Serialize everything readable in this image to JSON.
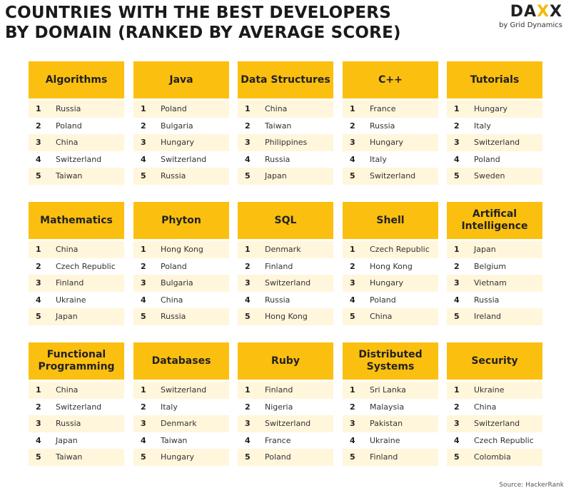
{
  "title_line1": "COUNTRIES WITH THE BEST DEVELOPERS",
  "title_line2": "BY DOMAIN (RANKED BY AVERAGE SCORE)",
  "logo": {
    "word_a": "DA",
    "word_b": "X",
    "word_c": "X",
    "sub": "by Grid Dynamics"
  },
  "source": "Source: HackerRank",
  "ranks": [
    "1",
    "2",
    "3",
    "4",
    "5"
  ],
  "categories": [
    {
      "name": "Algorithms",
      "countries": [
        "Russia",
        "Poland",
        "China",
        "Switzerland",
        "Taiwan"
      ]
    },
    {
      "name": "Java",
      "countries": [
        "Poland",
        "Bulgaria",
        "Hungary",
        "Switzerland",
        "Russia"
      ]
    },
    {
      "name": "Data Structures",
      "countries": [
        "China",
        "Taiwan",
        "Philippines",
        "Russia",
        "Japan"
      ]
    },
    {
      "name": "C++",
      "countries": [
        "France",
        "Russia",
        "Hungary",
        "Italy",
        "Switzerland"
      ]
    },
    {
      "name": "Tutorials",
      "countries": [
        "Hungary",
        "Italy",
        "Switzerland",
        "Poland",
        "Sweden"
      ]
    },
    {
      "name": "Mathematics",
      "countries": [
        "China",
        "Czech Republic",
        "Finland",
        "Ukraine",
        "Japan"
      ]
    },
    {
      "name": "Phyton",
      "countries": [
        "Hong Kong",
        "Poland",
        "Bulgaria",
        "China",
        "Russia"
      ]
    },
    {
      "name": "SQL",
      "countries": [
        "Denmark",
        "Finland",
        "Switzerland",
        "Russia",
        "Hong Kong"
      ]
    },
    {
      "name": "Shell",
      "countries": [
        "Czech Republic",
        "Hong Kong",
        "Hungary",
        "Poland",
        "China"
      ]
    },
    {
      "name": "Artifical Intelligence",
      "countries": [
        "Japan",
        "Belgium",
        "Vietnam",
        "Russia",
        "Ireland"
      ]
    },
    {
      "name": "Functional Programming",
      "countries": [
        "China",
        "Switzerland",
        "Russia",
        "Japan",
        "Taiwan"
      ]
    },
    {
      "name": "Databases",
      "countries": [
        "Switzerland",
        "Italy",
        "Denmark",
        "Taiwan",
        "Hungary"
      ]
    },
    {
      "name": "Ruby",
      "countries": [
        "Finland",
        "Nigeria",
        "Switzerland",
        "France",
        "Poland"
      ]
    },
    {
      "name": "Distributed Systems",
      "countries": [
        "Sri Lanka",
        "Malaysia",
        "Pakistan",
        "Ukraine",
        "Finland"
      ]
    },
    {
      "name": "Security",
      "countries": [
        "Ukraine",
        "China",
        "Switzerland",
        "Czech Republic",
        "Colombia"
      ]
    }
  ]
}
